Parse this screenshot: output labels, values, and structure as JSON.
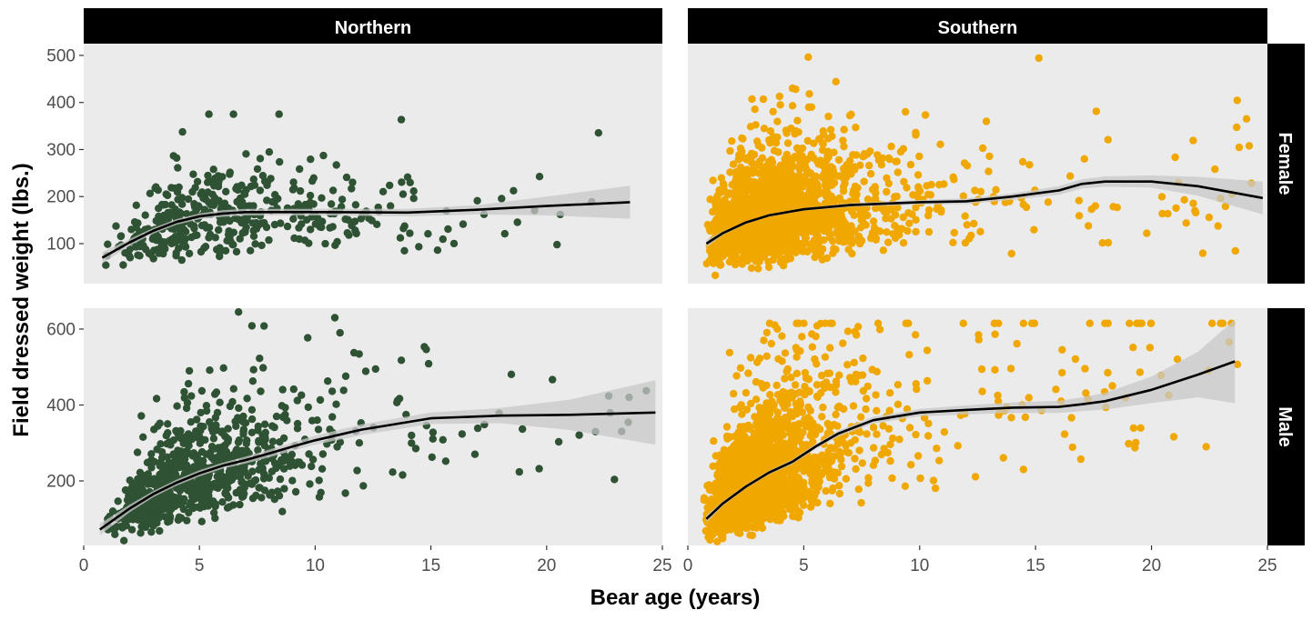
{
  "chart_data": {
    "type": "scatter",
    "xlabel": "Bear age (years)",
    "ylabel": "Field dressed weight (lbs.)",
    "columns": [
      "Northern",
      "Southern"
    ],
    "rows": [
      "Female",
      "Male"
    ],
    "x_range": [
      0,
      25
    ],
    "x_ticks": [
      0,
      5,
      10,
      15,
      20,
      25
    ],
    "y_ranges": {
      "Female": [
        15,
        525
      ],
      "Male": [
        30,
        655
      ]
    },
    "y_ticks": {
      "Female": [
        100,
        200,
        300,
        400,
        500
      ],
      "Male": [
        200,
        400,
        600
      ]
    },
    "grid": false,
    "legend": "none",
    "colors": {
      "Northern": "#2e5233",
      "Southern": "#f0a800",
      "panel_bg": "#ebebeb",
      "strip_bg": "#000000",
      "strip_text": "#ffffff",
      "smooth_line": "#000000",
      "confidence_band": "#c8c8c8"
    },
    "smooth": {
      "Northern": {
        "Female": {
          "x": [
            0.8,
            2,
            3,
            4,
            5,
            6,
            7,
            10,
            14,
            17,
            20,
            23.6
          ],
          "y": [
            70,
            103,
            127,
            146,
            158,
            164,
            167,
            167,
            166,
            172,
            180,
            188
          ],
          "se": [
            12,
            7,
            6,
            6,
            6,
            7,
            7,
            7,
            8,
            10,
            20,
            35
          ]
        },
        "Male": {
          "x": [
            0.7,
            2,
            3,
            4,
            5,
            6,
            7,
            8,
            9,
            10,
            12,
            15,
            18,
            21,
            24.7
          ],
          "y": [
            72,
            128,
            165,
            195,
            220,
            240,
            255,
            272,
            290,
            307,
            335,
            365,
            372,
            374,
            380
          ],
          "se": [
            15,
            10,
            8,
            8,
            8,
            8,
            9,
            10,
            11,
            12,
            14,
            15,
            20,
            40,
            85
          ]
        }
      },
      "Southern": {
        "Female": {
          "x": [
            0.8,
            1.5,
            2.5,
            3.5,
            5,
            7,
            10,
            12,
            14,
            16,
            17,
            18,
            20,
            22,
            24.8
          ],
          "y": [
            100,
            122,
            145,
            160,
            173,
            182,
            188,
            190,
            200,
            213,
            227,
            232,
            232,
            222,
            197
          ],
          "se": [
            8,
            4,
            3,
            3,
            3,
            4,
            5,
            6,
            7,
            9,
            10,
            11,
            13,
            20,
            35
          ]
        },
        "Male": {
          "x": [
            0.8,
            1.5,
            2.5,
            3.5,
            4.5,
            5.5,
            6.5,
            8,
            10,
            12,
            14,
            16,
            17,
            18,
            20,
            22,
            23.6
          ],
          "y": [
            100,
            140,
            185,
            222,
            250,
            290,
            325,
            360,
            380,
            387,
            393,
            395,
            402,
            410,
            440,
            480,
            515
          ],
          "se": [
            10,
            6,
            5,
            5,
            6,
            7,
            8,
            9,
            10,
            12,
            14,
            16,
            18,
            22,
            35,
            60,
            110
          ]
        }
      }
    },
    "scatter_summary": {
      "Northern": {
        "Female": {
          "n": 420,
          "x_max": 24,
          "y_range": [
            25,
            375
          ]
        },
        "Male": {
          "n": 800,
          "x_max": 25,
          "y_range": [
            35,
            645
          ]
        }
      },
      "Southern": {
        "Female": {
          "n": 1800,
          "x_max": 24.5,
          "y_range": [
            25,
            520
          ]
        },
        "Male": {
          "n": 2000,
          "x_max": 23.8,
          "y_range": [
            40,
            615
          ]
        }
      }
    }
  }
}
